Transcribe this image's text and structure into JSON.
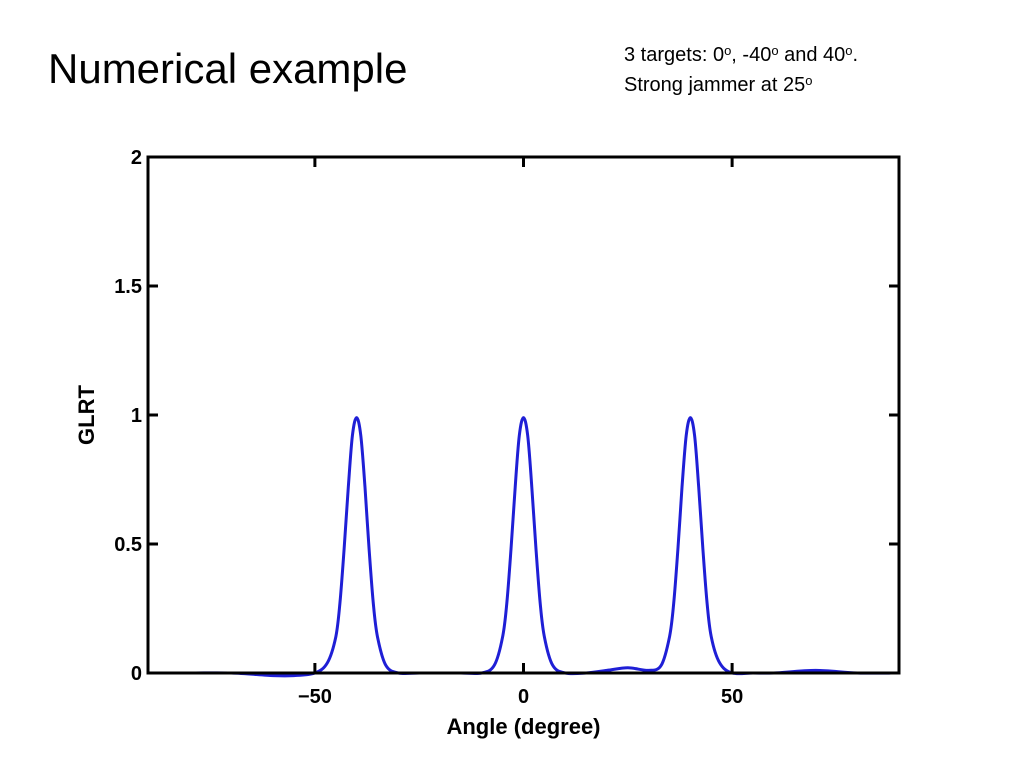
{
  "slide": {
    "title": "Numerical example",
    "note_line1": {
      "prefix": "3 targets: ",
      "a1": "0",
      "deg1": "o",
      "sep1": ", ",
      "a2": "-40",
      "deg2": "o",
      "sep2": " and ",
      "a3": "40",
      "deg3": "o",
      "end": "."
    },
    "note_line2": {
      "prefix": "Strong jammer at ",
      "a4": "25",
      "deg4": "o"
    }
  },
  "chart_data": {
    "type": "line",
    "title": "",
    "xlabel": "Angle (degree)",
    "ylabel": "GLRT",
    "xlim": [
      -90,
      90
    ],
    "ylim": [
      0,
      2
    ],
    "x_ticks": [
      -50,
      0,
      50
    ],
    "x_tick_labels": [
      "−50",
      "0",
      "50"
    ],
    "y_ticks": [
      0,
      0.5,
      1,
      1.5,
      2
    ],
    "y_tick_labels": [
      "0",
      "0.5",
      "1",
      "1.5",
      "2"
    ],
    "grid": false,
    "legend": "none",
    "series": [
      {
        "color": "#1f1fd6",
        "x": [
          -90,
          -80,
          -70,
          -60,
          -55,
          -50,
          -47,
          -45,
          -44,
          -43,
          -42,
          -41,
          -40,
          -39,
          -38,
          -37,
          -36,
          -35,
          -33,
          -30,
          -25,
          -20,
          -15,
          -10,
          -7,
          -5,
          -4,
          -3,
          -2,
          -1,
          0,
          1,
          2,
          3,
          4,
          5,
          7,
          10,
          15,
          20,
          25,
          30,
          33,
          35,
          36,
          37,
          38,
          39,
          40,
          41,
          42,
          43,
          44,
          45,
          47,
          50,
          55,
          60,
          70,
          80,
          90
        ],
        "y": [
          0.0,
          0.0,
          0.0,
          -0.01,
          -0.01,
          0.0,
          0.04,
          0.14,
          0.27,
          0.48,
          0.72,
          0.92,
          0.99,
          0.92,
          0.72,
          0.48,
          0.27,
          0.14,
          0.03,
          0.0,
          0.0,
          0.0,
          0.0,
          0.0,
          0.03,
          0.14,
          0.27,
          0.48,
          0.72,
          0.92,
          0.99,
          0.92,
          0.72,
          0.48,
          0.27,
          0.14,
          0.03,
          0.0,
          0.0,
          0.01,
          0.02,
          0.01,
          0.03,
          0.14,
          0.27,
          0.48,
          0.72,
          0.92,
          0.99,
          0.92,
          0.72,
          0.48,
          0.27,
          0.14,
          0.04,
          0.0,
          0.0,
          0.0,
          0.01,
          0.0,
          0.0
        ]
      }
    ]
  }
}
